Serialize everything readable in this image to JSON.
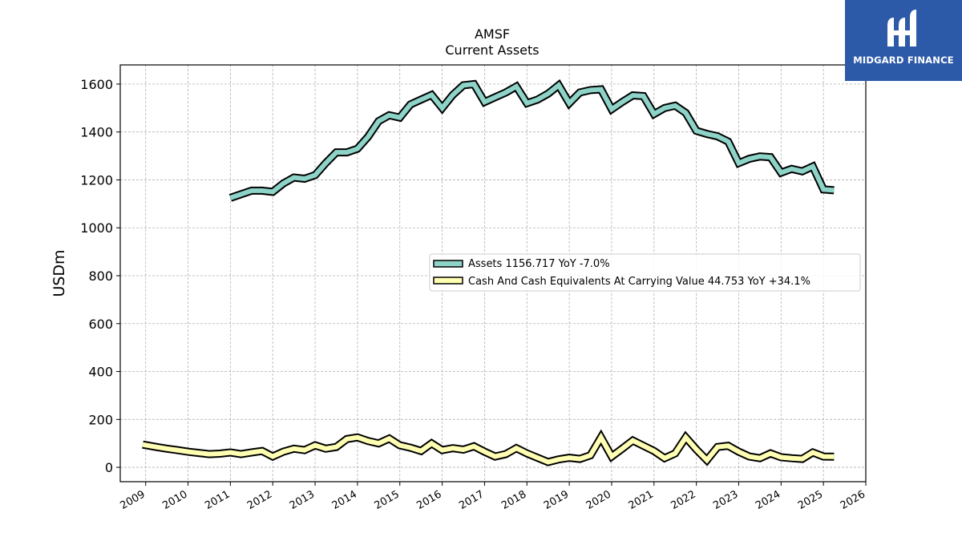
{
  "chart_data": {
    "type": "line",
    "title": "AMSF",
    "subtitle": "Current  Assets",
    "ylabel": "USDm",
    "xlim": [
      2008.4,
      2026.0
    ],
    "ylim": [
      -60,
      1680
    ],
    "yticks": [
      0,
      200,
      400,
      600,
      800,
      1000,
      1200,
      1400,
      1600
    ],
    "xticks": [
      2009,
      2010,
      2011,
      2012,
      2013,
      2014,
      2015,
      2016,
      2017,
      2018,
      2019,
      2020,
      2021,
      2022,
      2023,
      2024,
      2025,
      2026
    ],
    "grid": true,
    "legend_position": "center-right",
    "series": [
      {
        "name": "Assets",
        "legend_label": "Assets  1156.717 YoY -7.0%",
        "color": "#8dd3c7",
        "x": [
          2011.0,
          2011.25,
          2011.5,
          2011.75,
          2012.0,
          2012.25,
          2012.5,
          2012.75,
          2013.0,
          2013.25,
          2013.5,
          2013.75,
          2014.0,
          2014.25,
          2014.5,
          2014.75,
          2015.0,
          2015.25,
          2015.5,
          2015.75,
          2016.0,
          2016.25,
          2016.5,
          2016.75,
          2017.0,
          2017.25,
          2017.5,
          2017.75,
          2018.0,
          2018.25,
          2018.5,
          2018.75,
          2019.0,
          2019.25,
          2019.5,
          2019.75,
          2020.0,
          2020.25,
          2020.5,
          2020.75,
          2021.0,
          2021.25,
          2021.5,
          2021.75,
          2022.0,
          2022.25,
          2022.5,
          2022.75,
          2023.0,
          2023.25,
          2023.5,
          2023.75,
          2024.0,
          2024.25,
          2024.5,
          2024.75,
          2025.0,
          2025.25
        ],
        "values": [
          1125,
          1140,
          1155,
          1155,
          1150,
          1185,
          1210,
          1205,
          1220,
          1270,
          1315,
          1315,
          1330,
          1380,
          1445,
          1470,
          1460,
          1515,
          1535,
          1555,
          1500,
          1555,
          1595,
          1600,
          1525,
          1545,
          1565,
          1590,
          1520,
          1535,
          1560,
          1595,
          1520,
          1565,
          1575,
          1578,
          1495,
          1525,
          1553,
          1550,
          1475,
          1500,
          1510,
          1480,
          1405,
          1392,
          1382,
          1360,
          1270,
          1288,
          1298,
          1295,
          1230,
          1246,
          1236,
          1256,
          1160,
          1156.717
        ]
      },
      {
        "name": "Cash And Cash Equivalents At Carrying Value",
        "legend_label": "Cash And Cash Equivalents At Carrying Value  44.753 YoY +34.1%",
        "color": "#ffffb3",
        "x": [
          2008.93,
          2009.25,
          2009.5,
          2009.75,
          2010.0,
          2010.25,
          2010.5,
          2010.75,
          2011.0,
          2011.25,
          2011.5,
          2011.75,
          2012.0,
          2012.25,
          2012.5,
          2012.75,
          2013.0,
          2013.25,
          2013.5,
          2013.75,
          2014.0,
          2014.25,
          2014.5,
          2014.75,
          2015.0,
          2015.25,
          2015.5,
          2015.75,
          2016.0,
          2016.25,
          2016.5,
          2016.75,
          2017.0,
          2017.25,
          2017.5,
          2017.75,
          2018.0,
          2018.25,
          2018.5,
          2018.75,
          2019.0,
          2019.25,
          2019.5,
          2019.75,
          2020.0,
          2020.25,
          2020.5,
          2020.75,
          2021.0,
          2021.25,
          2021.5,
          2021.75,
          2022.0,
          2022.25,
          2022.5,
          2022.75,
          2023.0,
          2023.25,
          2023.5,
          2023.75,
          2024.0,
          2024.25,
          2024.5,
          2024.75,
          2025.0,
          2025.25
        ],
        "values": [
          95,
          85,
          78,
          72,
          65,
          60,
          55,
          57,
          62,
          55,
          62,
          68,
          45,
          65,
          78,
          72,
          92,
          78,
          85,
          118,
          125,
          110,
          100,
          120,
          92,
          82,
          68,
          100,
          72,
          80,
          74,
          88,
          65,
          45,
          55,
          80,
          58,
          40,
          22,
          33,
          40,
          35,
          50,
          125,
          45,
          78,
          112,
          90,
          68,
          38,
          58,
          125,
          75,
          30,
          85,
          90,
          65,
          45,
          38,
          58,
          42,
          38,
          35,
          62,
          45,
          44.753
        ]
      }
    ]
  },
  "logo": {
    "text": "MIDGARD FINANCE"
  }
}
